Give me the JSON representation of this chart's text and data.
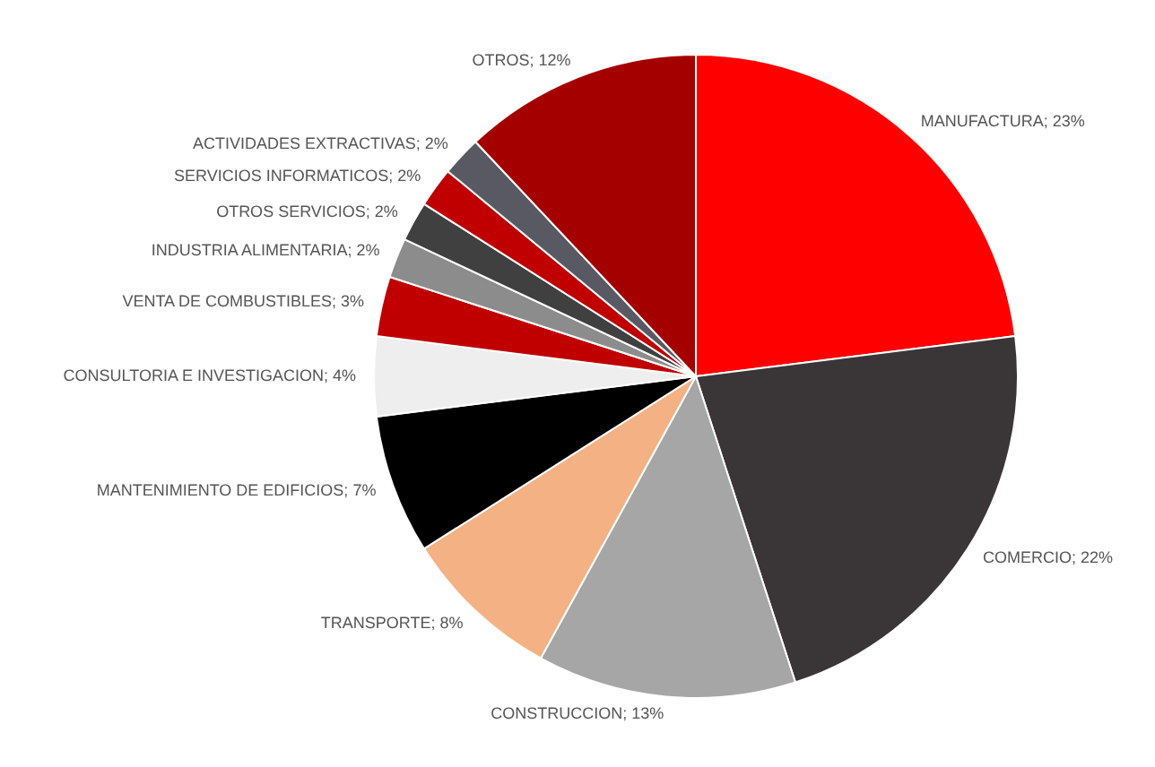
{
  "chart_data": {
    "type": "pie",
    "categories": [
      "MANUFACTURA",
      "COMERCIO",
      "CONSTRUCCION",
      "TRANSPORTE",
      "MANTENIMIENTO DE EDIFICIOS",
      "CONSULTORIA E INVESTIGACION",
      "VENTA DE COMBUSTIBLES",
      "INDUSTRIA ALIMENTARIA",
      "OTROS SERVICIOS",
      "SERVICIOS INFORMATICOS",
      "ACTIVIDADES EXTRACTIVAS",
      "OTROS"
    ],
    "values": [
      23,
      22,
      13,
      8,
      7,
      4,
      3,
      2,
      2,
      2,
      2,
      12
    ],
    "value_labels": [
      "23%",
      "22%",
      "13%",
      "8%",
      "7%",
      "4%",
      "3%",
      "2%",
      "2%",
      "2%",
      "2%",
      "12%"
    ],
    "colors": [
      "#ff0000",
      "#3a3536",
      "#a6a6a6",
      "#f4b183",
      "#000000",
      "#eeeeee",
      "#c00000",
      "#8c8c8c",
      "#404040",
      "#c00000",
      "#595964",
      "#a50000"
    ],
    "legend": false
  }
}
